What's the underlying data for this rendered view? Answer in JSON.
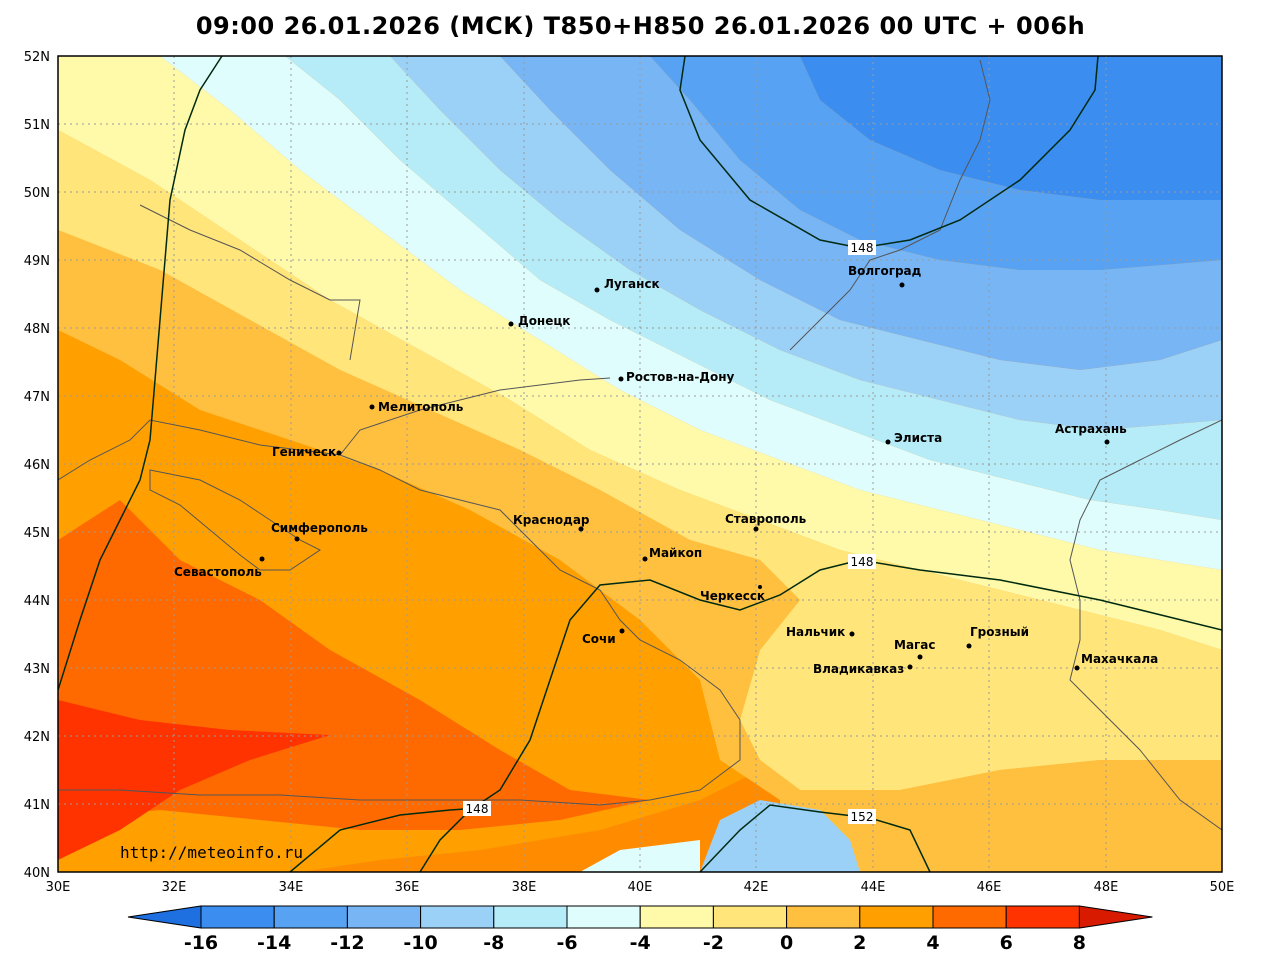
{
  "title": "09:00 26.01.2026 (МСК) T850+H850 26.01.2026 00 UTC + 006h",
  "website": "http://meteoinfo.ru",
  "axes": {
    "lat_labels": [
      "52N",
      "51N",
      "50N",
      "49N",
      "48N",
      "47N",
      "46N",
      "45N",
      "44N",
      "43N",
      "42N",
      "41N",
      "40N"
    ],
    "lon_labels": [
      "30E",
      "32E",
      "34E",
      "36E",
      "38E",
      "40E",
      "42E",
      "44E",
      "46E",
      "48E",
      "50E"
    ]
  },
  "colorbar": {
    "labels": [
      "-16",
      "-14",
      "-12",
      "-10",
      "-8",
      "-6",
      "-4",
      "-2",
      "0",
      "2",
      "4",
      "6",
      "8"
    ],
    "colors": [
      "#1e6fe0",
      "#3b8ef0",
      "#57a2f2",
      "#77b5f5",
      "#9bd0f7",
      "#b5ecf7",
      "#e0fdfd",
      "#fffaaa",
      "#ffe57a",
      "#ffc040",
      "#ffa000",
      "#ff6a00",
      "#ff3300",
      "#d81a00"
    ]
  },
  "cities": [
    {
      "name": "Луганск"
    },
    {
      "name": "Донецк"
    },
    {
      "name": "Волгоград"
    },
    {
      "name": "Ростов-на-Дону"
    },
    {
      "name": "Мелитополь"
    },
    {
      "name": "Элиста"
    },
    {
      "name": "Астрахань"
    },
    {
      "name": "Геническ"
    },
    {
      "name": "Краснодар"
    },
    {
      "name": "Ставрополь"
    },
    {
      "name": "Симферополь"
    },
    {
      "name": "Майкоп"
    },
    {
      "name": "Севастополь"
    },
    {
      "name": "Черкесск"
    },
    {
      "name": "Нальчик"
    },
    {
      "name": "Магас"
    },
    {
      "name": "Грозный"
    },
    {
      "name": "Сочи"
    },
    {
      "name": "Махачкала"
    },
    {
      "name": "Владикавказ"
    }
  ],
  "isolines": [
    "148",
    "148",
    "148",
    "152"
  ]
}
